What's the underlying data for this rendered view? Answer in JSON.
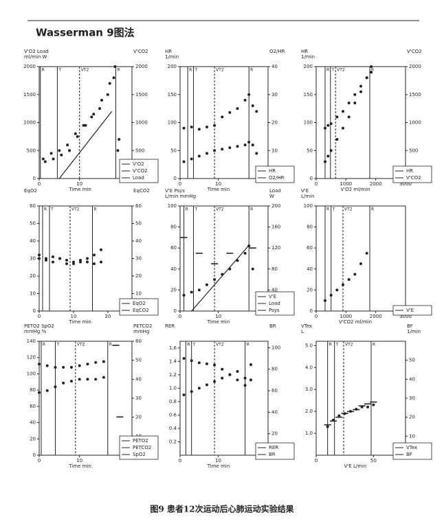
{
  "header": "Wasserman  9图法",
  "caption": "图9  患者12次运动后心肺运动实验结果",
  "chart_data": [
    {
      "type": "scatter",
      "ylabel": [
        "V'O2  Load",
        "ml/min  W"
      ],
      "y2label": [
        "V'CO2"
      ],
      "xlabel": "Time  min",
      "xlim": [
        0,
        23
      ],
      "xticks": [
        0,
        10
      ],
      "ylim": [
        0,
        2000
      ],
      "yticks": [
        0,
        500,
        1000,
        1500,
        2000
      ],
      "y2lim": [
        0,
        2000
      ],
      "y2ticks": [
        500,
        1000,
        1500,
        2000
      ],
      "markers": [
        {
          "label": "R",
          "x": 0.3
        },
        {
          "label": "T",
          "x": 4.5
        },
        {
          "label": "VT2",
          "x": 10
        },
        {
          "label": "R",
          "x": 19
        }
      ],
      "series": [
        {
          "name": "V'O2",
          "style": "dots",
          "color": "#222",
          "x": [
            1,
            3,
            5,
            7,
            9,
            11,
            13,
            15,
            17,
            18.5,
            19.5
          ],
          "values": [
            350,
            450,
            500,
            600,
            800,
            950,
            1100,
            1250,
            1500,
            1800,
            500
          ]
        },
        {
          "name": "V'CO2",
          "style": "dots",
          "color": "#222",
          "axis": "y2",
          "x": [
            1.5,
            3.5,
            5.5,
            7.5,
            9.5,
            11.5,
            13.5,
            15.5,
            17.5,
            18.8,
            19.8
          ],
          "values": [
            300,
            350,
            420,
            500,
            750,
            950,
            1150,
            1400,
            1700,
            2000,
            700
          ]
        },
        {
          "name": "Load",
          "style": "line",
          "color": "#222",
          "x": [
            5,
            18
          ],
          "values": [
            0,
            1200
          ]
        }
      ]
    },
    {
      "type": "scatter",
      "ylabel": [
        "HR",
        "1/min"
      ],
      "y2label": [
        "O2/HR"
      ],
      "xlabel": "Time  min",
      "xlim": [
        0,
        23
      ],
      "xticks": [
        0,
        10
      ],
      "ylim": [
        0,
        200
      ],
      "yticks": [
        0,
        50,
        100,
        150,
        200
      ],
      "y2lim": [
        0,
        40
      ],
      "y2ticks": [
        10,
        20,
        30,
        40
      ],
      "markers": [
        {
          "label": "R",
          "x": 2
        },
        {
          "label": "T",
          "x": 3.5
        },
        {
          "label": "VT2",
          "x": 9
        },
        {
          "label": "R",
          "x": 18
        }
      ],
      "series": [
        {
          "name": "HR",
          "style": "dots",
          "color": "#222",
          "x": [
            1,
            3,
            5,
            7,
            9,
            11,
            13,
            15,
            17,
            18,
            19,
            20
          ],
          "values": [
            90,
            92,
            88,
            92,
            95,
            110,
            118,
            125,
            140,
            150,
            130,
            120
          ]
        },
        {
          "name": "O2/HR",
          "style": "dots",
          "color": "#222",
          "axis": "y2",
          "x": [
            1,
            3,
            5,
            7,
            9,
            11,
            13,
            15,
            17,
            18,
            19,
            20
          ],
          "values": [
            6,
            7,
            8,
            9,
            10,
            10.5,
            11,
            11.5,
            12,
            13,
            12,
            9
          ]
        }
      ]
    },
    {
      "type": "scatter",
      "ylabel": [
        "HR",
        "1/min"
      ],
      "y2label": [
        "V'CO2"
      ],
      "xlabel": "V'O2  ml/min",
      "xlim": [
        0,
        3000
      ],
      "xticks": [
        0,
        1000,
        2000,
        3000
      ],
      "ylim": [
        0,
        200
      ],
      "yticks": [
        0,
        50,
        100,
        150,
        200
      ],
      "y2lim": [
        0,
        2000
      ],
      "y2ticks": [
        500,
        1000,
        1500,
        2000
      ],
      "markers": [
        {
          "label": "R",
          "x": 300
        },
        {
          "label": "T",
          "x": 480
        },
        {
          "label": "VT2",
          "x": 650
        },
        {
          "label": "R",
          "x": 1800
        }
      ],
      "series": [
        {
          "name": "HR",
          "style": "dots",
          "color": "#222",
          "x": [
            300,
            400,
            500,
            700,
            900,
            1100,
            1300,
            1500,
            1700,
            1850
          ],
          "values": [
            90,
            95,
            98,
            110,
            120,
            135,
            150,
            165,
            180,
            190
          ]
        },
        {
          "name": "V'CO2",
          "style": "dots",
          "color": "#222",
          "axis": "y2",
          "x": [
            300,
            400,
            500,
            700,
            900,
            1100,
            1300,
            1500,
            1700,
            1850
          ],
          "values": [
            300,
            400,
            500,
            700,
            900,
            1100,
            1350,
            1550,
            1800,
            2000
          ]
        }
      ]
    },
    {
      "type": "scatter",
      "ylabel": [
        "EqO2"
      ],
      "y2label": [
        "EqCO2"
      ],
      "xlabel": "Time  min",
      "xlim": [
        0,
        27
      ],
      "xticks": [
        0,
        10,
        20
      ],
      "ylim": [
        0,
        60
      ],
      "yticks": [
        0,
        10,
        20,
        30,
        40,
        50,
        60
      ],
      "y2lim": [
        0,
        60
      ],
      "y2ticks": [
        10,
        20,
        30,
        40,
        50,
        60
      ],
      "markers": [
        {
          "label": "R",
          "x": 1
        },
        {
          "label": "T",
          "x": 3
        },
        {
          "label": "VT2",
          "x": 9
        },
        {
          "label": "R",
          "x": 15.5
        }
      ],
      "series": [
        {
          "name": "EqO2",
          "style": "dots",
          "color": "#222",
          "x": [
            0,
            2,
            4,
            6,
            8,
            10,
            12,
            14,
            16,
            18
          ],
          "values": [
            32,
            30,
            31,
            30,
            29,
            28,
            29,
            30,
            32,
            35
          ]
        },
        {
          "name": "EqCO2",
          "style": "dots",
          "color": "#222",
          "axis": "y2",
          "x": [
            0,
            2,
            4,
            6,
            8,
            10,
            12,
            14,
            16,
            18
          ],
          "values": [
            30,
            29,
            28,
            30,
            27,
            27,
            28,
            28,
            27,
            28
          ]
        }
      ]
    },
    {
      "type": "scatter",
      "ylabel": [
        "V'E  Psys",
        "L/min  mmHg"
      ],
      "y2label": [
        "Load",
        "W"
      ],
      "xlabel": "Time  min",
      "xlim": [
        0,
        23
      ],
      "xticks": [
        0,
        10
      ],
      "ylim": [
        0,
        100
      ],
      "yticks": [
        0,
        20,
        40,
        60,
        80,
        100
      ],
      "y2lim": [
        0,
        200
      ],
      "y2ticks": [
        40,
        80,
        120,
        160,
        200
      ],
      "markers": [
        {
          "label": "R",
          "x": 1
        },
        {
          "label": "T",
          "x": 3.5
        },
        {
          "label": "VT2",
          "x": 9
        },
        {
          "label": "R",
          "x": 18
        }
      ],
      "series": [
        {
          "name": "V'E",
          "style": "dots",
          "color": "#222",
          "x": [
            1,
            3,
            5,
            7,
            9,
            11,
            13,
            15,
            17,
            18,
            19
          ],
          "values": [
            15,
            18,
            20,
            25,
            30,
            35,
            40,
            48,
            55,
            62,
            40
          ]
        },
        {
          "name": "Load",
          "style": "line",
          "color": "#222",
          "axis": "y2",
          "x": [
            3,
            18
          ],
          "values": [
            0,
            125
          ]
        },
        {
          "name": "Psys",
          "style": "dash",
          "color": "#222",
          "x": [
            1,
            5,
            9,
            13,
            19
          ],
          "values": [
            70,
            55,
            45,
            55,
            60
          ]
        }
      ]
    },
    {
      "type": "scatter",
      "ylabel": [
        "V'E",
        "L/min"
      ],
      "xlabel": "V'CO2  ml/min",
      "xlim": [
        0,
        3000
      ],
      "xticks": [
        0,
        1000,
        2000,
        3000
      ],
      "ylim": [
        0,
        100
      ],
      "yticks": [
        0,
        20,
        40,
        60,
        80,
        100
      ],
      "markers": [
        {
          "label": "R",
          "x": 300
        },
        {
          "label": "T",
          "x": 500
        },
        {
          "label": "VT2",
          "x": 900
        },
        {
          "label": "R",
          "x": 1800
        }
      ],
      "series": [
        {
          "name": "V'E",
          "style": "dots",
          "color": "#222",
          "x": [
            300,
            500,
            700,
            900,
            1100,
            1300,
            1500,
            1700
          ],
          "values": [
            10,
            15,
            20,
            25,
            30,
            35,
            45,
            55
          ]
        }
      ]
    },
    {
      "type": "scatter",
      "ylabel": [
        "PETO2  SpO2",
        "mmHg  %"
      ],
      "y2label": [
        "PETCO2",
        "mmHg"
      ],
      "xlabel": "Time  min",
      "xlim": [
        0,
        23
      ],
      "xticks": [
        0,
        10
      ],
      "ylim": [
        0,
        140
      ],
      "yticks": [
        0,
        20,
        40,
        60,
        80,
        100,
        120,
        140
      ],
      "y2lim": [
        0,
        60
      ],
      "y2ticks": [
        10,
        20,
        30,
        40,
        50,
        60
      ],
      "markers": [
        {
          "label": "R",
          "x": 0.5
        },
        {
          "label": "T",
          "x": 4
        },
        {
          "label": "VT2",
          "x": 9
        },
        {
          "label": "R",
          "x": 17
        }
      ],
      "series": [
        {
          "name": "PETO2",
          "style": "dots",
          "color": "#222",
          "x": [
            0,
            2,
            4,
            6,
            8,
            10,
            12,
            14,
            16
          ],
          "values": [
            112,
            110,
            108,
            108,
            108,
            110,
            112,
            114,
            115
          ]
        },
        {
          "name": "PETCO2",
          "style": "dots",
          "color": "#222",
          "axis": "y2",
          "x": [
            0,
            2,
            4,
            6,
            8,
            10,
            12,
            14,
            16
          ],
          "values": [
            33,
            34,
            36,
            38,
            39,
            40,
            40,
            40,
            41
          ]
        },
        {
          "name": "SpO2",
          "style": "dash",
          "color": "#222",
          "x": [
            19,
            20
          ],
          "values": [
            135,
            47
          ]
        }
      ]
    },
    {
      "type": "scatter",
      "ylabel": [
        "RER"
      ],
      "y2label": [
        "BR"
      ],
      "xlabel": "Time  min",
      "xlim": [
        0,
        23
      ],
      "xticks": [
        0,
        10
      ],
      "ylim": [
        0,
        1.7
      ],
      "yticks": [
        0.2,
        0.4,
        0.6,
        0.8,
        {
          "value": 1,
          "label": "1.0"
        },
        1.2,
        1.4,
        1.6
      ],
      "y2lim": [
        0,
        106
      ],
      "y2ticks": [
        20,
        40,
        60,
        80,
        100
      ],
      "markers": [
        {
          "label": "R",
          "x": 1.5
        },
        {
          "label": "T",
          "x": 3
        },
        {
          "label": "VT2",
          "x": 9
        },
        {
          "label": "R",
          "x": 17
        }
      ],
      "series": [
        {
          "name": "RER",
          "style": "dots",
          "color": "#222",
          "x": [
            1,
            3,
            5,
            7,
            9,
            11,
            13,
            15,
            17,
            18.5
          ],
          "values": [
            0.9,
            0.95,
            1.0,
            1.05,
            1.1,
            1.15,
            1.2,
            1.25,
            1.15,
            1.35
          ]
        },
        {
          "name": "BR",
          "style": "dots",
          "color": "#222",
          "axis": "y2",
          "x": [
            1,
            3,
            5,
            7,
            9,
            11,
            13,
            15,
            17,
            18.5
          ],
          "values": [
            90,
            88,
            86,
            85,
            84,
            80,
            75,
            70,
            65,
            70
          ]
        }
      ]
    },
    {
      "type": "scatter",
      "ylabel": [
        "VTex",
        "L"
      ],
      "y2label": [
        "BF",
        "1/min"
      ],
      "xlabel": "V'E  L/min",
      "xlim": [
        0,
        78
      ],
      "xticks": [
        0,
        50
      ],
      "ylim": [
        0,
        5.2
      ],
      "yticks": [
        {
          "value": 1,
          "label": "1.0"
        },
        {
          "value": 2,
          "label": "2.0"
        },
        {
          "value": 3,
          "label": "3.0"
        },
        {
          "value": 4,
          "label": "4.0"
        },
        {
          "value": 5,
          "label": "5.0"
        }
      ],
      "y2lim": [
        0,
        60
      ],
      "y2ticks": [
        10,
        20,
        30,
        40,
        50
      ],
      "markers": [
        {
          "label": "R",
          "x": 10
        },
        {
          "label": "T",
          "x": 16
        },
        {
          "label": "VT2",
          "x": 24
        },
        {
          "label": "R",
          "x": 48
        }
      ],
      "series": [
        {
          "name": "VTex",
          "style": "dots",
          "color": "#222",
          "x": [
            10,
            15,
            20,
            25,
            30,
            35,
            40,
            45,
            50
          ],
          "values": [
            1.3,
            1.6,
            1.8,
            1.9,
            2.0,
            2.1,
            2.2,
            2.2,
            2.3
          ]
        },
        {
          "name": "BF",
          "style": "dash",
          "color": "#222",
          "axis": "y2",
          "x": [
            10,
            15,
            20,
            25,
            30,
            35,
            40,
            45,
            50
          ],
          "values": [
            16,
            18,
            20,
            22,
            23,
            24,
            26,
            27,
            28
          ]
        }
      ]
    }
  ]
}
